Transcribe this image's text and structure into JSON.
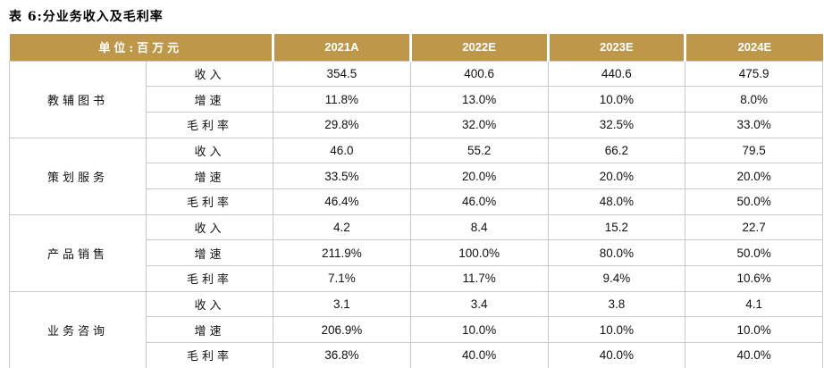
{
  "title": "表 6:分业务收入及毛利率",
  "colors": {
    "header_bg": "#BF974A",
    "header_text": "#FFFFFF",
    "grid_border": "#C9C9C9",
    "body_text": "#111111"
  },
  "table": {
    "unit_header": "单位:百万元",
    "columns": [
      "2021A",
      "2022E",
      "2023E",
      "2024E"
    ],
    "groups": [
      {
        "name": "教辅图书",
        "rows": [
          {
            "label": "收入",
            "values": [
              "354.5",
              "400.6",
              "440.6",
              "475.9"
            ]
          },
          {
            "label": "增速",
            "values": [
              "11.8%",
              "13.0%",
              "10.0%",
              "8.0%"
            ]
          },
          {
            "label": "毛利率",
            "values": [
              "29.8%",
              "32.0%",
              "32.5%",
              "33.0%"
            ]
          }
        ]
      },
      {
        "name": "策划服务",
        "rows": [
          {
            "label": "收入",
            "values": [
              "46.0",
              "55.2",
              "66.2",
              "79.5"
            ]
          },
          {
            "label": "增速",
            "values": [
              "33.5%",
              "20.0%",
              "20.0%",
              "20.0%"
            ]
          },
          {
            "label": "毛利率",
            "values": [
              "46.4%",
              "46.0%",
              "48.0%",
              "50.0%"
            ]
          }
        ]
      },
      {
        "name": "产品销售",
        "rows": [
          {
            "label": "收入",
            "values": [
              "4.2",
              "8.4",
              "15.2",
              "22.7"
            ]
          },
          {
            "label": "增速",
            "values": [
              "211.9%",
              "100.0%",
              "80.0%",
              "50.0%"
            ]
          },
          {
            "label": "毛利率",
            "values": [
              "7.1%",
              "11.7%",
              "9.4%",
              "10.6%"
            ]
          }
        ]
      },
      {
        "name": "业务咨询",
        "rows": [
          {
            "label": "收入",
            "values": [
              "3.1",
              "3.4",
              "3.8",
              "4.1"
            ]
          },
          {
            "label": "增速",
            "values": [
              "206.9%",
              "10.0%",
              "10.0%",
              "10.0%"
            ]
          },
          {
            "label": "毛利率",
            "values": [
              "36.8%",
              "40.0%",
              "40.0%",
              "40.0%"
            ]
          }
        ]
      }
    ]
  }
}
